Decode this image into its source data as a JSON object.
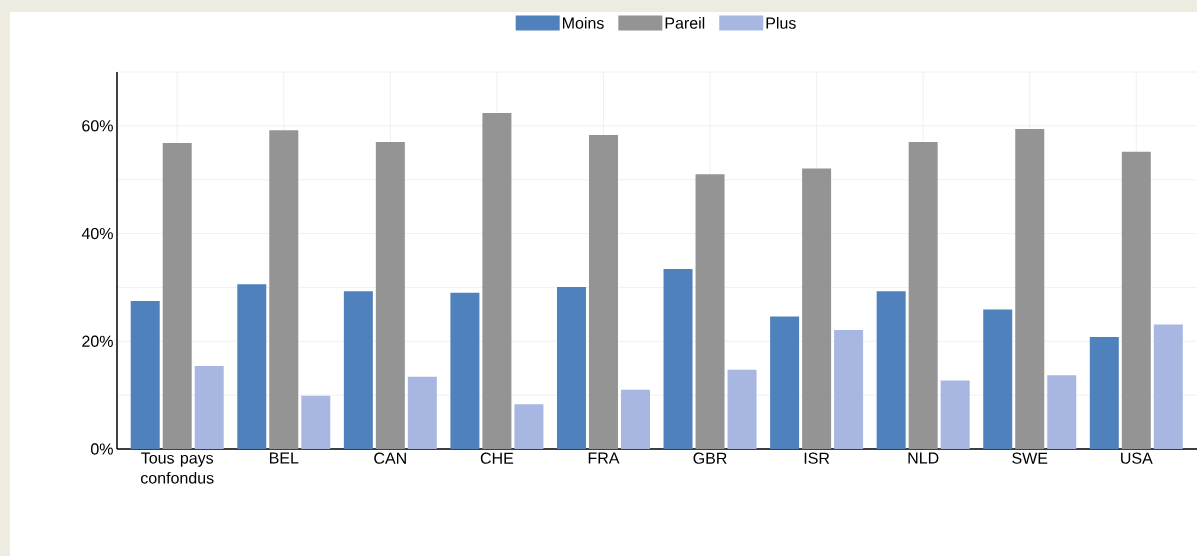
{
  "chart_data": {
    "type": "bar",
    "categories": [
      "Tous pays confondus",
      "BEL",
      "CAN",
      "CHE",
      "FRA",
      "GBR",
      "ISR",
      "NLD",
      "SWE",
      "USA"
    ],
    "series": [
      {
        "name": "Moins",
        "color": "#4f81bd",
        "values": [
          27.5,
          30.6,
          29.3,
          29.0,
          30.1,
          33.4,
          24.6,
          29.3,
          25.9,
          20.8
        ]
      },
      {
        "name": "Pareil",
        "color": "#949494",
        "values": [
          56.8,
          59.2,
          57.0,
          62.4,
          58.3,
          51.0,
          52.1,
          57.0,
          59.4,
          55.2
        ]
      },
      {
        "name": "Plus",
        "color": "#a7b7e2",
        "values": [
          15.4,
          9.9,
          13.4,
          8.3,
          11.0,
          14.7,
          22.1,
          12.7,
          13.7,
          23.1
        ]
      }
    ],
    "ylim": [
      0,
      70
    ],
    "yticks": [
      {
        "value": 0,
        "label": "0%"
      },
      {
        "value": 10,
        "label": null
      },
      {
        "value": 20,
        "label": "20%"
      },
      {
        "value": 30,
        "label": null
      },
      {
        "value": 40,
        "label": "40%"
      },
      {
        "value": 50,
        "label": null
      },
      {
        "value": 60,
        "label": "60%"
      },
      {
        "value": 70,
        "label": null
      }
    ],
    "grid": true,
    "legend": "top"
  }
}
